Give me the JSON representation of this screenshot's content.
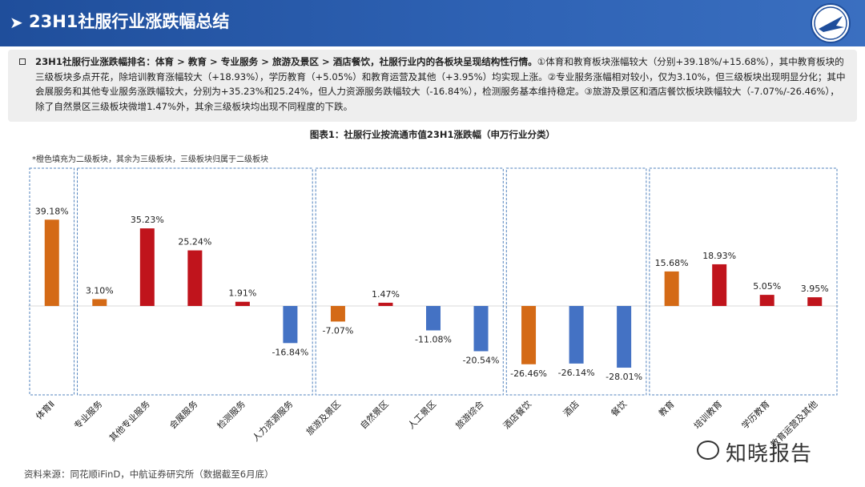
{
  "header": {
    "arrow": "➤",
    "title": "23H1社服行业涨跌幅总结",
    "logo_icon": "avic-logo-icon"
  },
  "summary": {
    "lead": "23H1社服行业涨跌幅排名：体育 > 教育 > 专业服务 > 旅游及景区 > 酒店餐饮，社服行业内的各板块呈现结构性行情。",
    "body": "①体育和教育板块涨幅较大（分别+39.18%/+15.68%），其中教育板块的三级板块多点开花，除培训教育涨幅较大（+18.93%），学历教育（+5.05%）和教育运营及其他（+3.95%）均实现上涨。②专业服务涨幅相对较小，仅为3.10%，但三级板块出现明显分化；其中会展服务和其他专业服务涨跌幅较大，分别为+35.23%和25.24%，但人力资源服务跌幅较大（-16.84%），检测服务基本维持稳定。③旅游及景区和酒店餐饮板块跌幅较大（-7.07%/-26.46%），除了自然景区三级板块微增1.47%外，其余三级板块均出现不同程度的下跌。"
  },
  "chart_data": {
    "type": "bar",
    "title": "图表1：社服行业按流通市值23H1涨跌幅（申万行业分类）",
    "note": "*橙色填充为二级板块，其余为三级板块，三级板块归属于二级板块",
    "categories": [
      "体育Ⅱ",
      "专业服务",
      "其他专业服务",
      "会展服务",
      "检测服务",
      "人力资源服务",
      "旅游及景区",
      "自然景区",
      "人工景区",
      "旅游综合",
      "酒店餐饮",
      "酒店",
      "餐饮",
      "教育",
      "培训教育",
      "学历教育",
      "教育运营及其他"
    ],
    "values": [
      39.18,
      3.1,
      35.23,
      25.24,
      1.91,
      -16.84,
      -7.07,
      1.47,
      -11.08,
      -20.54,
      -26.46,
      -26.14,
      -28.01,
      15.68,
      18.93,
      5.05,
      3.95
    ],
    "labels": [
      "39.18%",
      "3.10%",
      "35.23%",
      "25.24%",
      "1.91%",
      "-16.84%",
      "-7.07%",
      "1.47%",
      "-11.08%",
      "-20.54%",
      "-26.46%",
      "-26.14%",
      "-28.01%",
      "15.68%",
      "18.93%",
      "5.05%",
      "3.95%"
    ],
    "groups": [
      {
        "name": "体育",
        "start": 0,
        "end": 0
      },
      {
        "name": "专业服务",
        "start": 1,
        "end": 5
      },
      {
        "name": "旅游及景区",
        "start": 6,
        "end": 9
      },
      {
        "name": "酒店餐饮",
        "start": 10,
        "end": 12
      },
      {
        "name": "教育",
        "start": 13,
        "end": 16
      }
    ],
    "ylim": [
      -35,
      45
    ],
    "colors": {
      "level2": "#d46a16",
      "positive": "#c0141c",
      "negative": "#4472c4",
      "frame": "#4f81bd"
    }
  },
  "source": "资料来源：同花顺iFinD，中航证券研究所（数据截至6月底）",
  "watermark": {
    "text": "知晓报告",
    "icon": "wechat-icon"
  }
}
